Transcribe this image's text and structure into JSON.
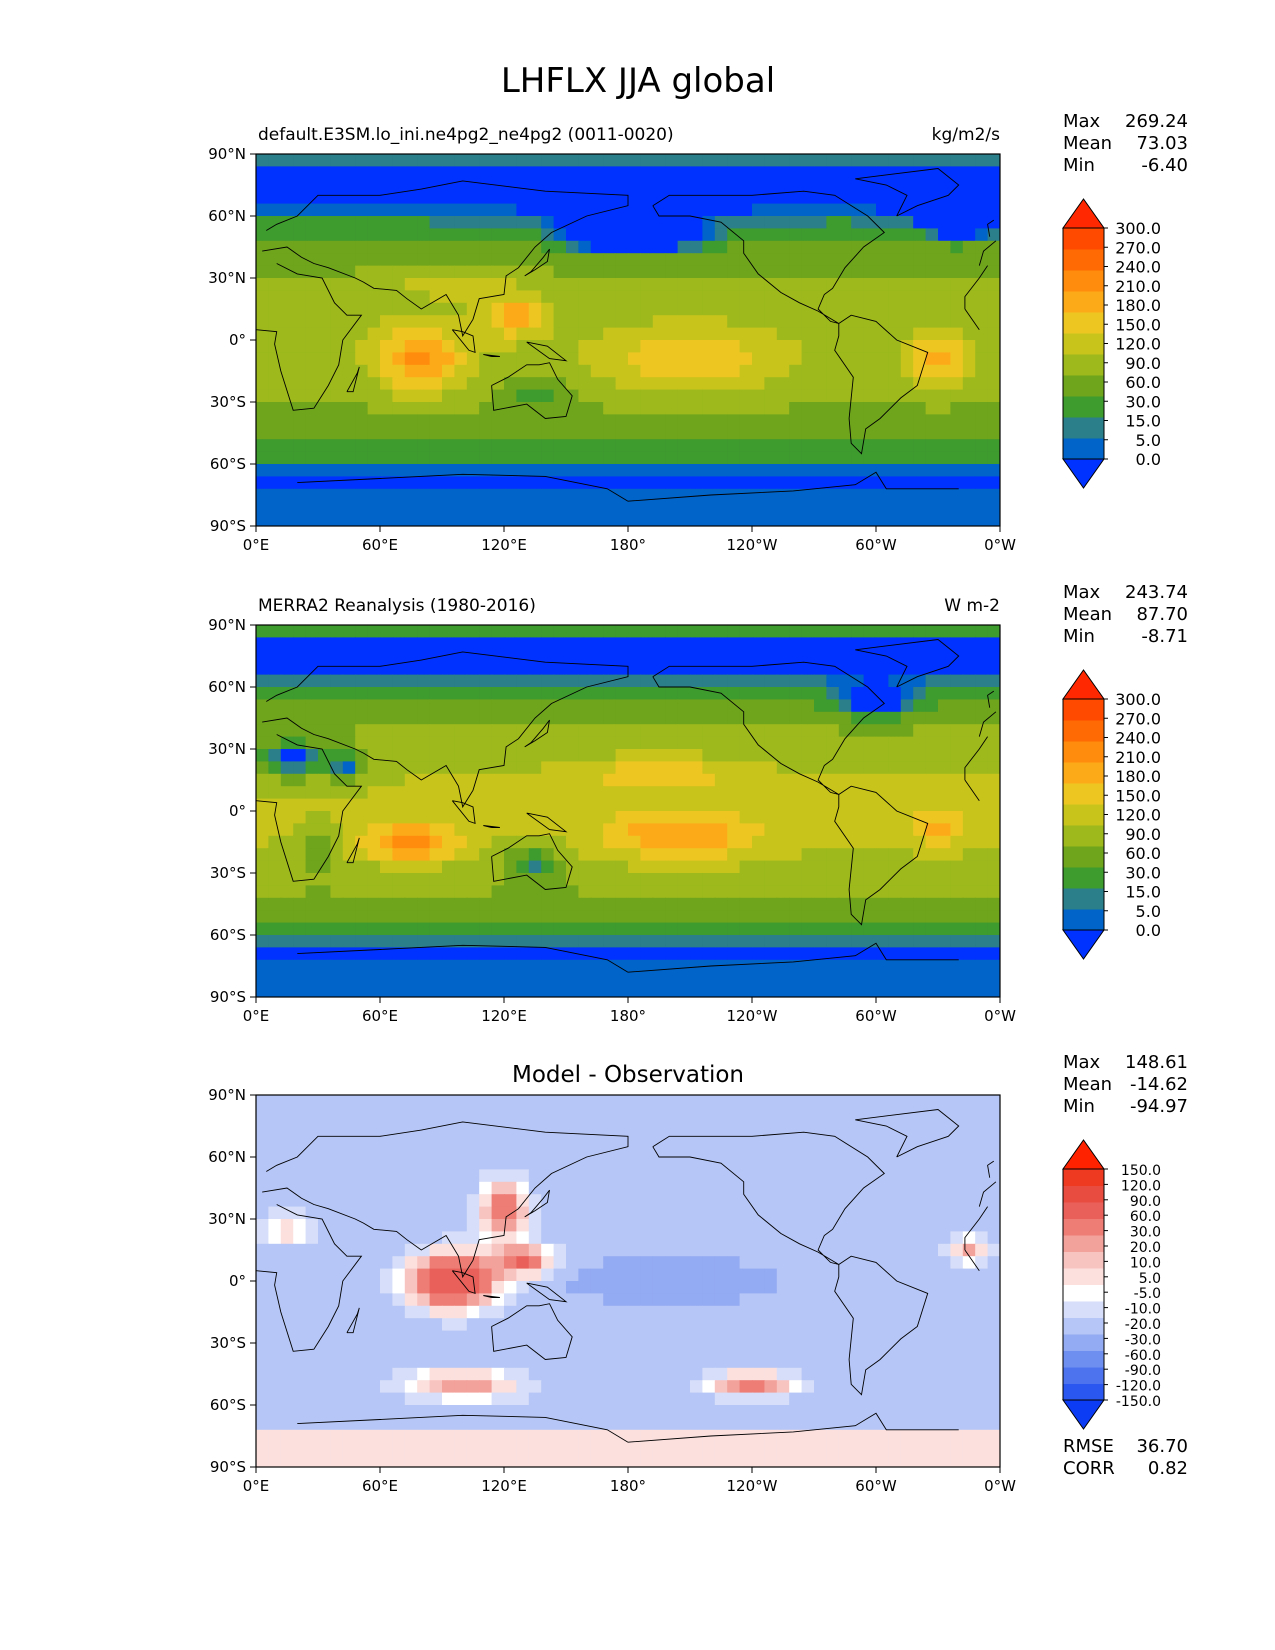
{
  "figure": {
    "title": "LHFLX JJA global"
  },
  "axis_labels": {
    "lat": [
      "90°N",
      "60°N",
      "30°N",
      "0°",
      "30°S",
      "60°S",
      "90°S"
    ],
    "lon": [
      "0°E",
      "60°E",
      "120°E",
      "180°",
      "120°W",
      "60°W",
      "0°W"
    ]
  },
  "stat_labels": {
    "max": "Max",
    "mean": "Mean",
    "min": "Min",
    "rmse": "RMSE",
    "corr": "CORR"
  },
  "panels": [
    {
      "id": "model",
      "left_title": "default.E3SM.lo_ini.ne4pg2_ne4pg2 (0011-0020)",
      "center_title": "",
      "right_title": "kg/m2/s",
      "stats": {
        "max": "269.24",
        "mean": "73.03",
        "min": "-6.40"
      },
      "colorbar_levels": [
        "0.0",
        "5.0",
        "15.0",
        "30.0",
        "60.0",
        "90.0",
        "120.0",
        "150.0",
        "180.0",
        "210.0",
        "240.0",
        "270.0",
        "300.0"
      ]
    },
    {
      "id": "obs",
      "left_title": "MERRA2 Reanalysis (1980-2016)",
      "center_title": "",
      "right_title": "W m-2",
      "stats": {
        "max": "243.74",
        "mean": "87.70",
        "min": "-8.71"
      },
      "colorbar_levels": [
        "0.0",
        "5.0",
        "15.0",
        "30.0",
        "60.0",
        "90.0",
        "120.0",
        "150.0",
        "180.0",
        "210.0",
        "240.0",
        "270.0",
        "300.0"
      ]
    },
    {
      "id": "diff",
      "left_title": "",
      "center_title": "Model - Observation",
      "right_title": "",
      "stats": {
        "max": "148.61",
        "mean": "-14.62",
        "min": "-94.97",
        "rmse": "36.70",
        "corr": "0.82"
      },
      "colorbar_levels": [
        "-150.0",
        "-120.0",
        "-90.0",
        "-60.0",
        "-30.0",
        "-20.0",
        "-10.0",
        "-5.0",
        "5.0",
        "10.0",
        "20.0",
        "30.0",
        "60.0",
        "90.0",
        "120.0",
        "150.0"
      ]
    }
  ],
  "colors": {
    "seq": [
      "#0032ff",
      "#0064c8",
      "#2a7f8a",
      "#3e9b2e",
      "#6ea51d",
      "#9db91c",
      "#c8c41c",
      "#eec622",
      "#fcaa18",
      "#ff8c0c",
      "#ff6a05",
      "#ff4a00",
      "#ff2800"
    ],
    "div": [
      "#0d3cf5",
      "#2a57f0",
      "#4d74ee",
      "#6e8ff0",
      "#93abf2",
      "#b6c6f6",
      "#d6def9",
      "#ffffff",
      "#fbe0de",
      "#f8c4c0",
      "#f3a19b",
      "#ed7d75",
      "#e9605a",
      "#e84b40",
      "#ef3a22",
      "#ff2200"
    ]
  },
  "chart_data": [
    {
      "type": "heatmap",
      "name": "model",
      "title": "LHFLX JJA global",
      "x_ticks": [
        "0°E",
        "60°E",
        "120°E",
        "180°",
        "120°W",
        "60°W",
        "0°W"
      ],
      "y_ticks": [
        "90°N",
        "60°N",
        "30°N",
        "0°",
        "30°S",
        "60°S",
        "90°S"
      ],
      "xlim": [
        0,
        360
      ],
      "ylim": [
        -90,
        90
      ],
      "units": "kg/m2/s",
      "levels": [
        0,
        5,
        15,
        30,
        60,
        90,
        120,
        150,
        180,
        210,
        240,
        270,
        300
      ],
      "max": 269.24,
      "mean": 73.03,
      "min": -6.4,
      "features": [
        {
          "lon": 80,
          "lat": -10,
          "value": 185,
          "note": "Indian Ocean maximum"
        },
        {
          "lon": 125,
          "lat": 10,
          "value": 185,
          "note": "west Pacific maximum"
        },
        {
          "lon": 210,
          "lat": -10,
          "value": 160,
          "note": "central Pacific"
        },
        {
          "lon": 330,
          "lat": -10,
          "value": 190,
          "note": "south Atlantic"
        },
        {
          "lon": 180,
          "lat": 55,
          "value": 5,
          "note": "north Pacific minimum"
        },
        {
          "lon": 180,
          "lat": -80,
          "value": 0,
          "note": "Antarctica"
        }
      ]
    },
    {
      "type": "heatmap",
      "name": "obs",
      "x_ticks": [
        "0°E",
        "60°E",
        "120°E",
        "180°",
        "120°W",
        "60°W",
        "0°W"
      ],
      "y_ticks": [
        "90°N",
        "60°N",
        "30°N",
        "0°",
        "30°S",
        "60°S",
        "90°S"
      ],
      "xlim": [
        0,
        360
      ],
      "ylim": [
        -90,
        90
      ],
      "units": "W m-2",
      "levels": [
        0,
        5,
        15,
        30,
        60,
        90,
        120,
        150,
        180,
        210,
        240,
        270,
        300
      ],
      "max": 243.74,
      "mean": 87.7,
      "min": -8.71,
      "features": [
        {
          "lon": 75,
          "lat": -15,
          "value": 200,
          "note": "south Indian Ocean maximum"
        },
        {
          "lon": 205,
          "lat": -10,
          "value": 185,
          "note": "south Pacific"
        },
        {
          "lon": 195,
          "lat": 18,
          "value": 165,
          "note": "north Pacific trades"
        },
        {
          "lon": 135,
          "lat": -25,
          "value": 30,
          "note": "Australia"
        },
        {
          "lon": 10,
          "lat": 25,
          "value": 5,
          "note": "Sahara"
        },
        {
          "lon": 180,
          "lat": -80,
          "value": 0,
          "note": "Antarctica"
        }
      ]
    },
    {
      "type": "heatmap",
      "name": "diff",
      "title": "Model - Observation",
      "x_ticks": [
        "0°E",
        "60°E",
        "120°E",
        "180°",
        "120°W",
        "60°W",
        "0°W"
      ],
      "y_ticks": [
        "90°N",
        "60°N",
        "30°N",
        "0°",
        "30°S",
        "60°S",
        "90°S"
      ],
      "xlim": [
        0,
        360
      ],
      "ylim": [
        -90,
        90
      ],
      "levels": [
        -150,
        -120,
        -90,
        -60,
        -30,
        -20,
        -10,
        -5,
        5,
        10,
        20,
        30,
        60,
        90,
        120,
        150
      ],
      "max": 148.61,
      "mean": -14.62,
      "min": -94.97,
      "rmse": 36.7,
      "corr": 0.82,
      "features": [
        {
          "lon": 95,
          "lat": 0,
          "value": 60,
          "note": "Indian Ocean positive"
        },
        {
          "lon": 120,
          "lat": 35,
          "value": 40,
          "note": "east Asia positive"
        },
        {
          "lon": 125,
          "lat": 10,
          "value": 60,
          "note": "west Pacific positive"
        },
        {
          "lon": 240,
          "lat": -50,
          "value": 40,
          "note": "southern Pacific positive"
        },
        {
          "lon": 200,
          "lat": 0,
          "value": -30,
          "note": "tropical Pacific negative"
        },
        {
          "lon": 300,
          "lat": 30,
          "value": -30,
          "note": "north Atlantic negative"
        }
      ]
    }
  ]
}
